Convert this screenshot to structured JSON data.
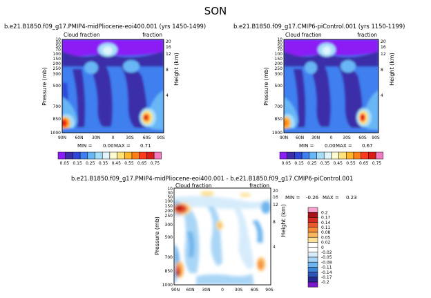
{
  "page_title": "SON",
  "colors": {
    "seq_scale": [
      "#8b1df5",
      "#3b2ea8",
      "#2f47d9",
      "#3f7ff0",
      "#67b6f5",
      "#a6defa",
      "#dff4fb",
      "#fefbd1",
      "#ffe27a",
      "#ffb62a",
      "#ff7f17",
      "#ff3b1d",
      "#d81e17",
      "#f37cc0"
    ],
    "div_scale": [
      "#f5a0cf",
      "#a81018",
      "#d42a21",
      "#ea5a2e",
      "#f58b3d",
      "#fbb85a",
      "#fde195",
      "#ffffff",
      "#ffffff",
      "#d6ecfb",
      "#a9d5f6",
      "#6fb6ee",
      "#3d86d7",
      "#2c56b5",
      "#242a8f",
      "#7a18c9"
    ]
  },
  "chart_data": [
    {
      "type": "heatmap",
      "title": "b.e21.B1850.f09_g17.PMIP4-midPliocene-eoi400.001 (yrs 1450-1499)",
      "corner_left": "Cloud fraction",
      "corner_right": "fraction",
      "xlabel": "",
      "ylabel": "Pressure (mb)",
      "ylabel_right": "Height (km)",
      "x_ticks": [
        "90N",
        "60N",
        "30N",
        "0",
        "30S",
        "60S",
        "90S"
      ],
      "y_ticks": [
        "10",
        "30",
        "50",
        "70",
        "100",
        "150",
        "200",
        "250",
        "300",
        "400",
        "500",
        "700",
        "850",
        "1000"
      ],
      "y_ticks_right": [
        "20",
        "16",
        "12",
        "8",
        "4"
      ],
      "min_label": "MIN =",
      "min_value": "0.00",
      "max_label": "MAX =",
      "max_value": "0.71",
      "legend_labels": [
        "0.05",
        "0.15",
        "0.25",
        "0.35",
        "0.45",
        "0.55",
        "0.65",
        "0.75"
      ]
    },
    {
      "type": "heatmap",
      "title": "b.e21.B1850.f09_g17.CMIP6-piControl.001 (yrs 1150-1199)",
      "corner_left": "Cloud fraction",
      "corner_right": "fraction",
      "xlabel": "",
      "ylabel": "Pressure (mb)",
      "ylabel_right": "Height (km)",
      "x_ticks": [
        "90N",
        "60N",
        "30N",
        "0",
        "30S",
        "60S",
        "90S"
      ],
      "y_ticks": [
        "10",
        "30",
        "50",
        "70",
        "100",
        "150",
        "200",
        "250",
        "300",
        "400",
        "500",
        "700",
        "850",
        "1000"
      ],
      "y_ticks_right": [
        "20",
        "16",
        "12",
        "8",
        "4"
      ],
      "min_label": "MIN =",
      "min_value": "0.00",
      "max_label": "MAX =",
      "max_value": "0.67",
      "legend_labels": [
        "0.05",
        "0.15",
        "0.25",
        "0.35",
        "0.45",
        "0.55",
        "0.65",
        "0.75"
      ]
    },
    {
      "type": "heatmap",
      "title": "b.e21.B1850.f09_g17.PMIP4-midPliocene-eoi400.001 - b.e21.B1850.f09_g17.CMIP6-piControl.001",
      "corner_left": "Cloud fraction",
      "corner_right": "fraction",
      "xlabel": "",
      "ylabel": "Pressure (mb)",
      "ylabel_right": "Height (km)",
      "x_ticks": [
        "90N",
        "60N",
        "30N",
        "0",
        "30S",
        "60S",
        "90S"
      ],
      "y_ticks": [
        "10",
        "30",
        "50",
        "70",
        "100",
        "150",
        "200",
        "250",
        "300",
        "400",
        "500",
        "700",
        "850",
        "1000"
      ],
      "y_ticks_right": [
        "20",
        "16",
        "12",
        "8",
        "4"
      ],
      "min_label": "MIN =",
      "min_value": "-0.26",
      "max_label": "MAX =",
      "max_value": "0.23",
      "legend_labels": [
        "0.2",
        "0.17",
        "0.14",
        "0.11",
        "0.08",
        "0.05",
        "0.02",
        "0",
        "-0.02",
        "-0.05",
        "-0.08",
        "-0.11",
        "-0.14",
        "-0.17",
        "-0.2"
      ]
    }
  ]
}
